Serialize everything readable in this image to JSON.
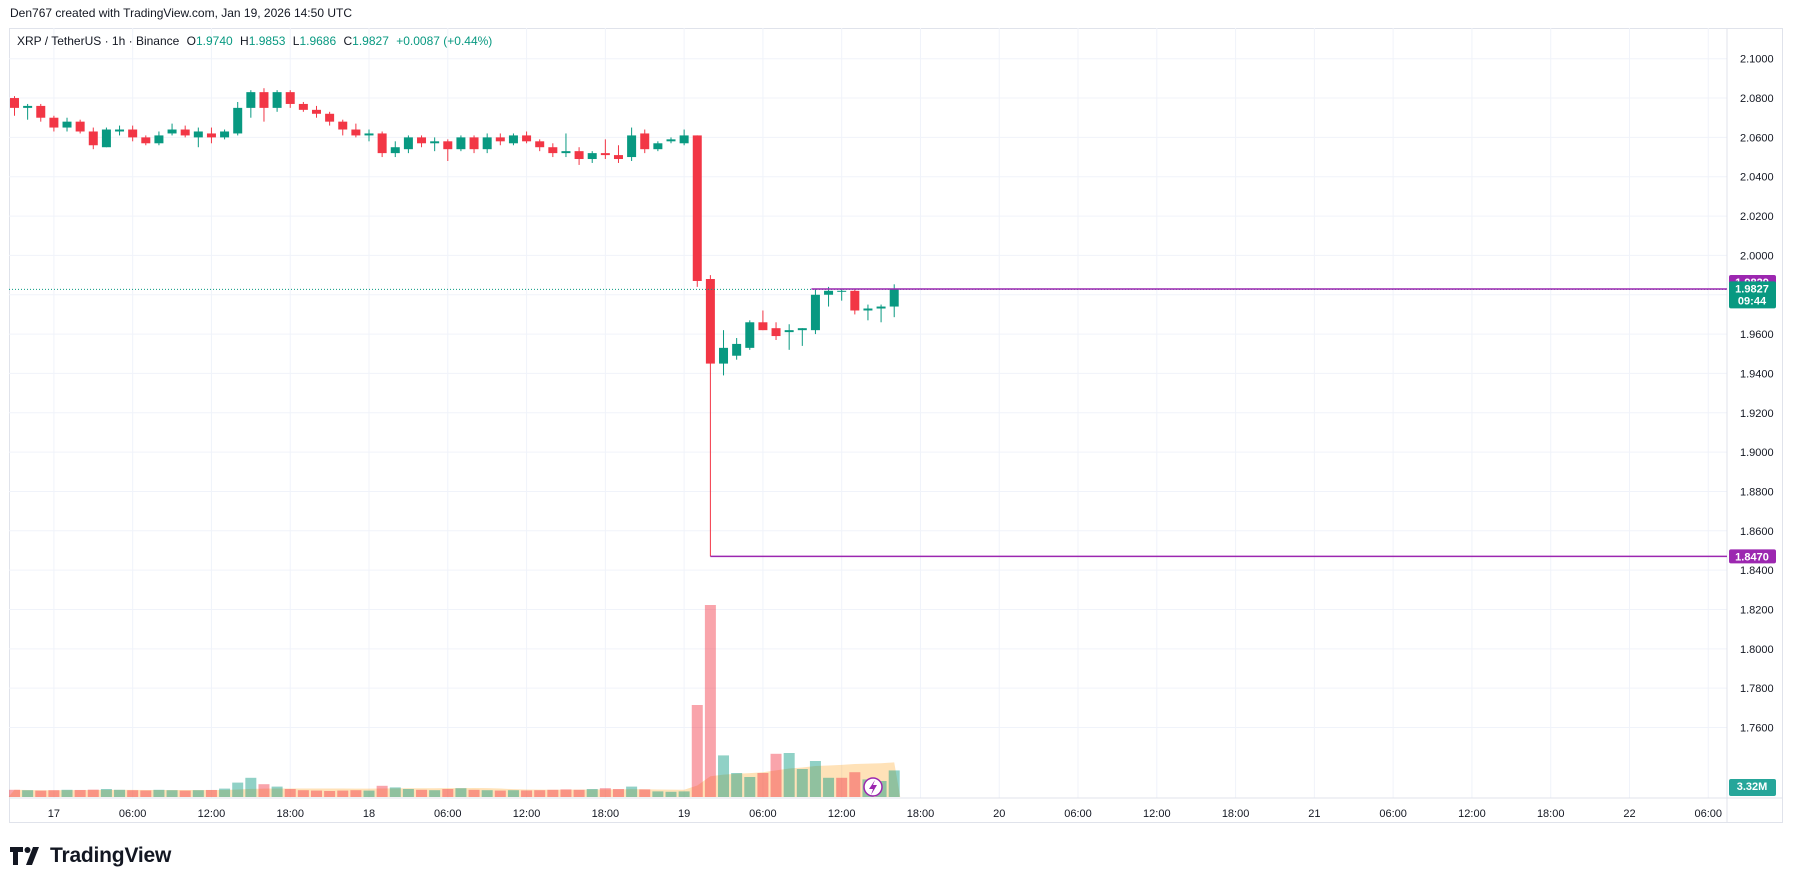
{
  "header": {
    "created_by": "Den767 created with TradingView.com, Jan 19, 2026 14:50 UTC"
  },
  "legend": {
    "symbol": "XRP / TetherUS · 1h · Binance",
    "o_label": "O",
    "o_value": "1.9740",
    "h_label": "H",
    "h_value": "1.9853",
    "l_label": "L",
    "l_value": "1.9686",
    "c_label": "C",
    "c_value": "1.9827",
    "change": "+0.0087 (+0.44%)"
  },
  "branding": {
    "logo_text": "TradingView"
  },
  "colors": {
    "up": "#089981",
    "down": "#f23645",
    "level": "#9c27b0",
    "grid": "#f0f3fa",
    "text": "#131722"
  },
  "price_labels": {
    "upper_level": "1.9829",
    "last_price": "1.9827",
    "countdown": "09:44",
    "lower_level": "1.8470",
    "volume": "3.32M"
  },
  "chart_data": {
    "type": "candlestick",
    "interval": "1h",
    "y_axis": {
      "range": [
        1.745,
        2.109
      ],
      "ticks": [
        "2.1000",
        "2.0800",
        "2.0600",
        "2.0400",
        "2.0200",
        "2.0000",
        "1.9800",
        "1.9600",
        "1.9400",
        "1.9200",
        "1.9000",
        "1.8800",
        "1.8600",
        "1.8400",
        "1.8200",
        "1.8000",
        "1.7800",
        "1.7600"
      ]
    },
    "x_axis": {
      "labels": [
        {
          "i": 3,
          "t": "17"
        },
        {
          "i": 9,
          "t": "06:00"
        },
        {
          "i": 15,
          "t": "12:00"
        },
        {
          "i": 21,
          "t": "18:00"
        },
        {
          "i": 27,
          "t": "18"
        },
        {
          "i": 33,
          "t": "06:00"
        },
        {
          "i": 39,
          "t": "12:00"
        },
        {
          "i": 45,
          "t": "18:00"
        },
        {
          "i": 51,
          "t": "19"
        },
        {
          "i": 57,
          "t": "06:00"
        },
        {
          "i": 63,
          "t": "12:00"
        },
        {
          "i": 69,
          "t": "18:00"
        },
        {
          "i": 75,
          "t": "20"
        },
        {
          "i": 81,
          "t": "06:00"
        },
        {
          "i": 87,
          "t": "12:00"
        },
        {
          "i": 93,
          "t": "18:00"
        },
        {
          "i": 99,
          "t": "21"
        },
        {
          "i": 105,
          "t": "06:00"
        },
        {
          "i": 111,
          "t": "12:00"
        },
        {
          "i": 117,
          "t": "18:00"
        },
        {
          "i": 123,
          "t": "22"
        },
        {
          "i": 129,
          "t": "06:00"
        }
      ]
    },
    "candles": [
      {
        "o": 2.08,
        "h": 2.081,
        "l": 2.071,
        "c": 2.075
      },
      {
        "o": 2.075,
        "h": 2.077,
        "l": 2.069,
        "c": 2.076
      },
      {
        "o": 2.076,
        "h": 2.077,
        "l": 2.068,
        "c": 2.07
      },
      {
        "o": 2.07,
        "h": 2.071,
        "l": 2.063,
        "c": 2.065
      },
      {
        "o": 2.065,
        "h": 2.07,
        "l": 2.063,
        "c": 2.068
      },
      {
        "o": 2.068,
        "h": 2.069,
        "l": 2.062,
        "c": 2.063
      },
      {
        "o": 2.063,
        "h": 2.065,
        "l": 2.054,
        "c": 2.056
      },
      {
        "o": 2.055,
        "h": 2.065,
        "l": 2.055,
        "c": 2.064
      },
      {
        "o": 2.063,
        "h": 2.066,
        "l": 2.061,
        "c": 2.064
      },
      {
        "o": 2.064,
        "h": 2.066,
        "l": 2.058,
        "c": 2.06
      },
      {
        "o": 2.06,
        "h": 2.061,
        "l": 2.056,
        "c": 2.057
      },
      {
        "o": 2.057,
        "h": 2.063,
        "l": 2.056,
        "c": 2.061
      },
      {
        "o": 2.062,
        "h": 2.067,
        "l": 2.061,
        "c": 2.064
      },
      {
        "o": 2.064,
        "h": 2.066,
        "l": 2.06,
        "c": 2.061
      },
      {
        "o": 2.06,
        "h": 2.065,
        "l": 2.055,
        "c": 2.063
      },
      {
        "o": 2.062,
        "h": 2.065,
        "l": 2.057,
        "c": 2.06
      },
      {
        "o": 2.06,
        "h": 2.064,
        "l": 2.059,
        "c": 2.063
      },
      {
        "o": 2.062,
        "h": 2.078,
        "l": 2.061,
        "c": 2.075
      },
      {
        "o": 2.075,
        "h": 2.084,
        "l": 2.07,
        "c": 2.083
      },
      {
        "o": 2.083,
        "h": 2.085,
        "l": 2.068,
        "c": 2.075
      },
      {
        "o": 2.075,
        "h": 2.084,
        "l": 2.073,
        "c": 2.083
      },
      {
        "o": 2.083,
        "h": 2.084,
        "l": 2.075,
        "c": 2.077
      },
      {
        "o": 2.077,
        "h": 2.078,
        "l": 2.073,
        "c": 2.074
      },
      {
        "o": 2.074,
        "h": 2.076,
        "l": 2.07,
        "c": 2.072
      },
      {
        "o": 2.072,
        "h": 2.073,
        "l": 2.066,
        "c": 2.068
      },
      {
        "o": 2.068,
        "h": 2.069,
        "l": 2.061,
        "c": 2.064
      },
      {
        "o": 2.064,
        "h": 2.067,
        "l": 2.06,
        "c": 2.061
      },
      {
        "o": 2.061,
        "h": 2.064,
        "l": 2.058,
        "c": 2.062
      },
      {
        "o": 2.062,
        "h": 2.063,
        "l": 2.05,
        "c": 2.052
      },
      {
        "o": 2.052,
        "h": 2.058,
        "l": 2.05,
        "c": 2.055
      },
      {
        "o": 2.054,
        "h": 2.061,
        "l": 2.052,
        "c": 2.06
      },
      {
        "o": 2.06,
        "h": 2.061,
        "l": 2.055,
        "c": 2.057
      },
      {
        "o": 2.057,
        "h": 2.06,
        "l": 2.053,
        "c": 2.058
      },
      {
        "o": 2.058,
        "h": 2.059,
        "l": 2.048,
        "c": 2.054
      },
      {
        "o": 2.054,
        "h": 2.061,
        "l": 2.053,
        "c": 2.06
      },
      {
        "o": 2.06,
        "h": 2.061,
        "l": 2.052,
        "c": 2.054
      },
      {
        "o": 2.054,
        "h": 2.062,
        "l": 2.052,
        "c": 2.06
      },
      {
        "o": 2.06,
        "h": 2.062,
        "l": 2.056,
        "c": 2.058
      },
      {
        "o": 2.057,
        "h": 2.062,
        "l": 2.056,
        "c": 2.061
      },
      {
        "o": 2.061,
        "h": 2.063,
        "l": 2.057,
        "c": 2.058
      },
      {
        "o": 2.058,
        "h": 2.059,
        "l": 2.053,
        "c": 2.055
      },
      {
        "o": 2.055,
        "h": 2.057,
        "l": 2.05,
        "c": 2.052
      },
      {
        "o": 2.052,
        "h": 2.062,
        "l": 2.05,
        "c": 2.053
      },
      {
        "o": 2.053,
        "h": 2.055,
        "l": 2.046,
        "c": 2.049
      },
      {
        "o": 2.049,
        "h": 2.053,
        "l": 2.047,
        "c": 2.052
      },
      {
        "o": 2.052,
        "h": 2.059,
        "l": 2.049,
        "c": 2.051
      },
      {
        "o": 2.051,
        "h": 2.056,
        "l": 2.047,
        "c": 2.049
      },
      {
        "o": 2.05,
        "h": 2.065,
        "l": 2.048,
        "c": 2.061
      },
      {
        "o": 2.062,
        "h": 2.064,
        "l": 2.052,
        "c": 2.054
      },
      {
        "o": 2.054,
        "h": 2.058,
        "l": 2.053,
        "c": 2.057
      },
      {
        "o": 2.058,
        "h": 2.06,
        "l": 2.057,
        "c": 2.059
      },
      {
        "o": 2.057,
        "h": 2.064,
        "l": 2.056,
        "c": 2.061
      },
      {
        "o": 2.061,
        "h": 2.061,
        "l": 1.984,
        "c": 1.987
      },
      {
        "o": 1.988,
        "h": 1.99,
        "l": 1.847,
        "c": 1.945
      },
      {
        "o": 1.945,
        "h": 1.962,
        "l": 1.939,
        "c": 1.953
      },
      {
        "o": 1.949,
        "h": 1.958,
        "l": 1.947,
        "c": 1.955
      },
      {
        "o": 1.953,
        "h": 1.967,
        "l": 1.952,
        "c": 1.966
      },
      {
        "o": 1.966,
        "h": 1.972,
        "l": 1.962,
        "c": 1.962
      },
      {
        "o": 1.963,
        "h": 1.966,
        "l": 1.957,
        "c": 1.959
      },
      {
        "o": 1.961,
        "h": 1.965,
        "l": 1.952,
        "c": 1.962
      },
      {
        "o": 1.962,
        "h": 1.963,
        "l": 1.954,
        "c": 1.963
      },
      {
        "o": 1.962,
        "h": 1.983,
        "l": 1.96,
        "c": 1.98
      },
      {
        "o": 1.98,
        "h": 1.984,
        "l": 1.974,
        "c": 1.982
      },
      {
        "o": 1.982,
        "h": 1.983,
        "l": 1.977,
        "c": 1.982
      },
      {
        "o": 1.982,
        "h": 1.983,
        "l": 1.97,
        "c": 1.972
      },
      {
        "o": 1.972,
        "h": 1.975,
        "l": 1.967,
        "c": 1.973
      },
      {
        "o": 1.973,
        "h": 1.975,
        "l": 1.966,
        "c": 1.974
      },
      {
        "o": 1.974,
        "h": 1.9853,
        "l": 1.9686,
        "c": 1.9827
      }
    ],
    "volume": [
      {
        "v": 0.9,
        "up": false
      },
      {
        "v": 0.85,
        "up": true
      },
      {
        "v": 0.8,
        "up": false
      },
      {
        "v": 0.85,
        "up": false
      },
      {
        "v": 0.9,
        "up": true
      },
      {
        "v": 0.88,
        "up": false
      },
      {
        "v": 0.92,
        "up": false
      },
      {
        "v": 1.0,
        "up": true
      },
      {
        "v": 0.9,
        "up": true
      },
      {
        "v": 0.85,
        "up": false
      },
      {
        "v": 0.82,
        "up": false
      },
      {
        "v": 0.9,
        "up": true
      },
      {
        "v": 0.85,
        "up": true
      },
      {
        "v": 0.8,
        "up": false
      },
      {
        "v": 0.85,
        "up": true
      },
      {
        "v": 0.88,
        "up": false
      },
      {
        "v": 1.05,
        "up": true
      },
      {
        "v": 1.8,
        "up": true
      },
      {
        "v": 2.4,
        "up": true
      },
      {
        "v": 1.6,
        "up": false
      },
      {
        "v": 1.3,
        "up": true
      },
      {
        "v": 1.0,
        "up": false
      },
      {
        "v": 0.85,
        "up": false
      },
      {
        "v": 0.8,
        "up": false
      },
      {
        "v": 0.75,
        "up": false
      },
      {
        "v": 0.8,
        "up": false
      },
      {
        "v": 0.85,
        "up": false
      },
      {
        "v": 0.8,
        "up": true
      },
      {
        "v": 1.4,
        "up": false
      },
      {
        "v": 1.2,
        "up": true
      },
      {
        "v": 1.0,
        "up": true
      },
      {
        "v": 0.9,
        "up": false
      },
      {
        "v": 0.85,
        "up": true
      },
      {
        "v": 1.0,
        "up": false
      },
      {
        "v": 1.1,
        "up": true
      },
      {
        "v": 0.9,
        "up": false
      },
      {
        "v": 0.85,
        "up": true
      },
      {
        "v": 0.8,
        "up": false
      },
      {
        "v": 0.85,
        "up": true
      },
      {
        "v": 0.82,
        "up": false
      },
      {
        "v": 0.85,
        "up": false
      },
      {
        "v": 0.9,
        "up": false
      },
      {
        "v": 0.95,
        "up": false
      },
      {
        "v": 0.9,
        "up": false
      },
      {
        "v": 1.0,
        "up": true
      },
      {
        "v": 1.1,
        "up": false
      },
      {
        "v": 1.0,
        "up": false
      },
      {
        "v": 1.3,
        "up": true
      },
      {
        "v": 0.95,
        "up": false
      },
      {
        "v": 0.7,
        "up": true
      },
      {
        "v": 0.65,
        "up": true
      },
      {
        "v": 0.7,
        "up": true
      },
      {
        "v": 11.5,
        "up": false
      },
      {
        "v": 24.0,
        "up": false
      },
      {
        "v": 5.2,
        "up": true
      },
      {
        "v": 3.0,
        "up": true
      },
      {
        "v": 2.5,
        "up": true
      },
      {
        "v": 3.0,
        "up": false
      },
      {
        "v": 5.4,
        "up": false
      },
      {
        "v": 5.5,
        "up": true
      },
      {
        "v": 3.5,
        "up": true
      },
      {
        "v": 4.5,
        "up": true
      },
      {
        "v": 2.4,
        "up": true
      },
      {
        "v": 2.4,
        "up": false
      },
      {
        "v": 3.1,
        "up": false
      },
      {
        "v": 2.2,
        "up": true
      },
      {
        "v": 2.0,
        "up": true
      },
      {
        "v": 3.32,
        "up": true
      }
    ]
  }
}
